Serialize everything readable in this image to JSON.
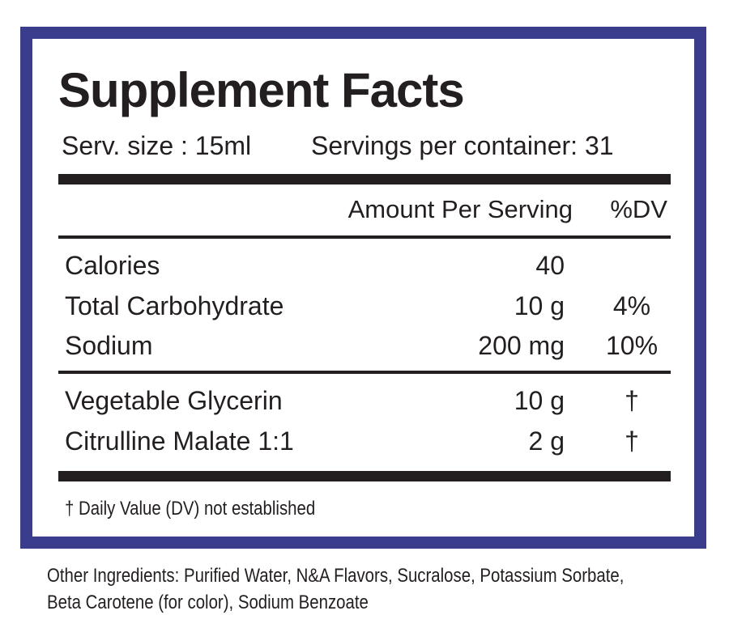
{
  "header": {
    "title": "Supplement Facts",
    "serving_size": "Serv. size : 15ml",
    "servings_per_container": "Servings per container: 31"
  },
  "table": {
    "columns": [
      "Amount Per Serving",
      "%DV"
    ],
    "rows": [
      [
        "Calories",
        "40"
      ],
      [
        "Total Carbohydrate",
        "10 g",
        "4%"
      ],
      [
        "Sodium",
        "200 mg",
        "10%"
      ],
      [
        "Vegetable Glycerin",
        "10 g",
        "†"
      ],
      [
        "Citrulline Malate 1:1",
        "2 g",
        "†"
      ]
    ]
  },
  "footnote": "† Daily Value (DV) not established",
  "other_ingredients": [
    "Other Ingredients: Purified Water, N&A Flavors, Sucralose, Potassium Sorbate,",
    "Beta Carotene (for color), Sodium Benzoate"
  ]
}
